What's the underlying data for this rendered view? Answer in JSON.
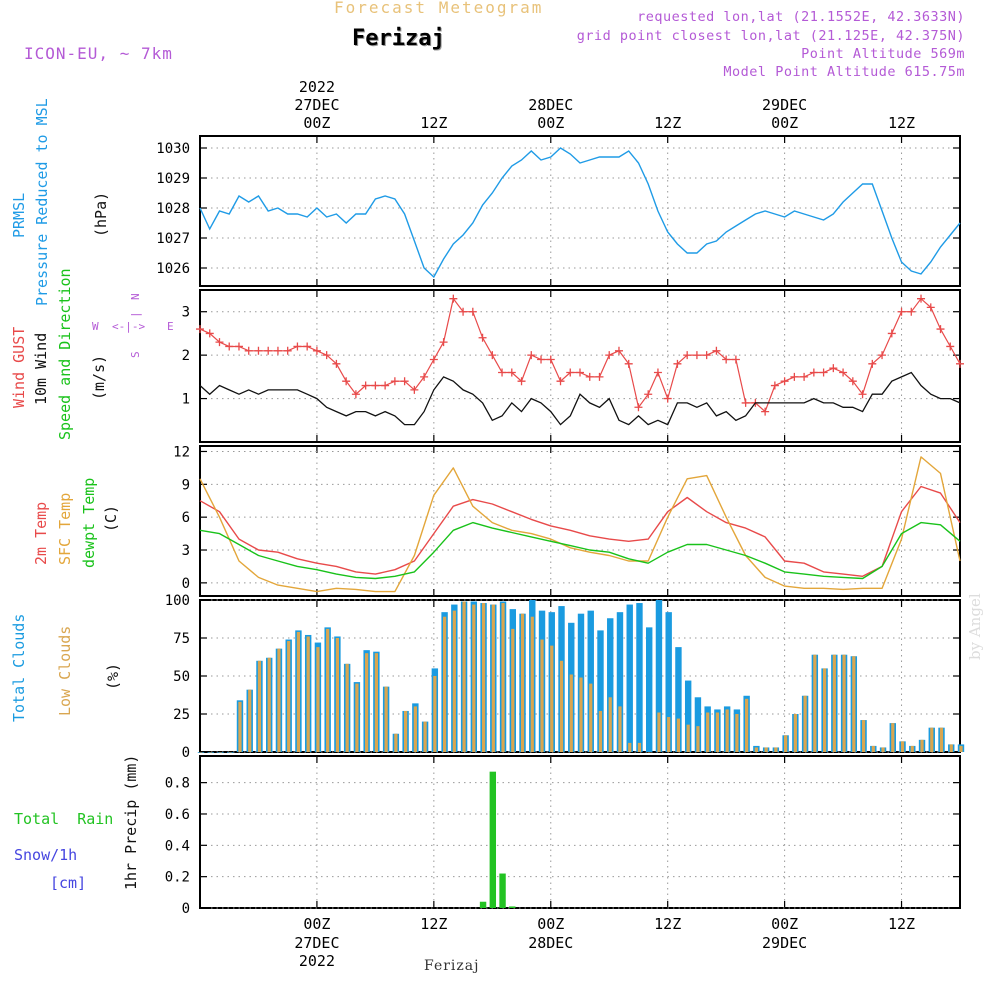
{
  "header": {
    "title": "Forecast Meteogram",
    "location": "Ferizaj",
    "model": "ICON-EU, ~ 7km",
    "requested": "requested lon,lat (21.1552E, 42.3633N)",
    "gridpoint": "grid point closest lon,lat (21.125E, 42.375N)",
    "point_altitude": "Point Altitude 569m",
    "model_altitude": "Model Point Altitude 615.75m"
  },
  "footer": {
    "location": "Ferizaj",
    "watermark": "by Angel"
  },
  "time_axis": {
    "hour_start": 0,
    "hour_end": 78,
    "ticks": [
      {
        "hour": 12,
        "line1": "00Z",
        "line2": "27DEC",
        "line3": "2022"
      },
      {
        "hour": 24,
        "line1": "12Z",
        "line2": "",
        "line3": ""
      },
      {
        "hour": 36,
        "line1": "00Z",
        "line2": "28DEC",
        "line3": ""
      },
      {
        "hour": 48,
        "line1": "12Z",
        "line2": "",
        "line3": ""
      },
      {
        "hour": 60,
        "line1": "00Z",
        "line2": "29DEC",
        "line3": ""
      },
      {
        "hour": 72,
        "line1": "12Z",
        "line2": "",
        "line3": ""
      }
    ]
  },
  "colors": {
    "pressure": "#1f9be6",
    "gust": "#e84a4a",
    "wind": "#111111",
    "t2m": "#e84a4a",
    "sfc": "#e3a63a",
    "dewpt": "#19c21a",
    "total_clouds": "#1a9be0",
    "low_clouds": "#d9a650",
    "rain": "#22c322",
    "snow": "#4545e0",
    "label_violet": "#b45ad6"
  },
  "panels": {
    "pressure": {
      "label1": "PRMSL",
      "label2": "Pressure Reduced to MSL",
      "unit": "(hPa)"
    },
    "wind": {
      "label1": "Wind GUST",
      "label2": "10m Wind",
      "label3": "Speed and Direction",
      "unit": "(m/s)",
      "compass_n": "N",
      "compass_s": "S",
      "compass_w": "W",
      "compass_e": "E",
      "compass_ns_mid": "|",
      "compass_we_mid": "<-|->"
    },
    "temp": {
      "label1": "2m Temp",
      "label2": "SFC Temp",
      "label3": "dewpt Temp",
      "unit": "(C)"
    },
    "clouds": {
      "label1": "Total Clouds",
      "label2": "Low Clouds",
      "unit": "(%)"
    },
    "precip": {
      "label1": "Total  Rain",
      "label2": "Snow/1h",
      "label3": "[cm]",
      "unit": "1hr Precip (mm)"
    }
  },
  "chart_data": [
    {
      "type": "line",
      "title": "PRMSL Pressure Reduced to MSL",
      "ylabel": "(hPa)",
      "ylim": [
        1025.4,
        1030.4
      ],
      "yticks": [
        1026,
        1027,
        1028,
        1029,
        1030
      ],
      "grid": true,
      "x_hours": [
        0,
        1,
        2,
        3,
        4,
        5,
        6,
        7,
        8,
        9,
        10,
        11,
        12,
        13,
        14,
        15,
        16,
        17,
        18,
        19,
        20,
        21,
        22,
        23,
        24,
        25,
        26,
        27,
        28,
        29,
        30,
        31,
        32,
        33,
        34,
        35,
        36,
        37,
        38,
        39,
        40,
        41,
        42,
        43,
        44,
        45,
        46,
        47,
        48,
        49,
        50,
        51,
        52,
        53,
        54,
        55,
        56,
        57,
        58,
        59,
        60,
        61,
        62,
        63,
        64,
        65,
        66,
        67,
        68,
        69,
        70,
        71,
        72,
        73,
        74,
        75,
        76,
        77,
        78
      ],
      "series": [
        {
          "name": "PRMSL",
          "values": [
            1028.0,
            1027.3,
            1027.9,
            1027.8,
            1028.4,
            1028.2,
            1028.4,
            1027.9,
            1028.0,
            1027.8,
            1027.8,
            1027.7,
            1028.0,
            1027.7,
            1027.8,
            1027.5,
            1027.8,
            1027.8,
            1028.3,
            1028.4,
            1028.3,
            1027.8,
            1026.9,
            1026.0,
            1025.7,
            1026.3,
            1026.8,
            1027.1,
            1027.5,
            1028.1,
            1028.5,
            1029.0,
            1029.4,
            1029.6,
            1029.9,
            1029.6,
            1029.7,
            1030.0,
            1029.8,
            1029.5,
            1029.6,
            1029.7,
            1029.7,
            1029.7,
            1029.9,
            1029.5,
            1028.8,
            1027.9,
            1027.2,
            1026.8,
            1026.5,
            1026.5,
            1026.8,
            1026.9,
            1027.2,
            1027.4,
            1027.6,
            1027.8,
            1027.9,
            1027.8,
            1027.7,
            1027.9,
            1027.8,
            1027.7,
            1027.6,
            1027.8,
            1028.2,
            1028.5,
            1028.8,
            1028.8,
            1027.9,
            1027.0,
            1026.2,
            1025.9,
            1025.8,
            1026.2,
            1026.7,
            1027.1,
            1027.5
          ]
        }
      ]
    },
    {
      "type": "line",
      "title": "Wind GUST / 10m Wind Speed and Direction",
      "ylabel": "(m/s)",
      "ylim": [
        0,
        3.5
      ],
      "yticks": [
        1,
        2,
        3
      ],
      "grid": true,
      "x_hours": [
        0,
        1,
        2,
        3,
        4,
        5,
        6,
        7,
        8,
        9,
        10,
        11,
        12,
        13,
        14,
        15,
        16,
        17,
        18,
        19,
        20,
        21,
        22,
        23,
        24,
        25,
        26,
        27,
        28,
        29,
        30,
        31,
        32,
        33,
        34,
        35,
        36,
        37,
        38,
        39,
        40,
        41,
        42,
        43,
        44,
        45,
        46,
        47,
        48,
        49,
        50,
        51,
        52,
        53,
        54,
        55,
        56,
        57,
        58,
        59,
        60,
        61,
        62,
        63,
        64,
        65,
        66,
        67,
        68,
        69,
        70,
        71,
        72,
        73,
        74,
        75,
        76,
        77,
        78
      ],
      "series": [
        {
          "name": "Wind GUST",
          "values": [
            2.6,
            2.5,
            2.3,
            2.2,
            2.2,
            2.1,
            2.1,
            2.1,
            2.1,
            2.1,
            2.2,
            2.2,
            2.1,
            2.0,
            1.8,
            1.4,
            1.1,
            1.3,
            1.3,
            1.3,
            1.4,
            1.4,
            1.2,
            1.5,
            1.9,
            2.3,
            3.3,
            3.0,
            3.0,
            2.4,
            2.0,
            1.6,
            1.6,
            1.4,
            2.0,
            1.9,
            1.9,
            1.4,
            1.6,
            1.6,
            1.5,
            1.5,
            2.0,
            2.1,
            1.8,
            0.8,
            1.1,
            1.6,
            1.0,
            1.8,
            2.0,
            2.0,
            2.0,
            2.1,
            1.9,
            1.9,
            0.9,
            0.9,
            0.7,
            1.3,
            1.4,
            1.5,
            1.5,
            1.6,
            1.6,
            1.7,
            1.6,
            1.4,
            1.1,
            1.8,
            2.0,
            2.5,
            3.0,
            3.0,
            3.3,
            3.1,
            2.6,
            2.2,
            1.8
          ]
        },
        {
          "name": "10m Wind",
          "values": [
            1.3,
            1.1,
            1.3,
            1.2,
            1.1,
            1.2,
            1.1,
            1.2,
            1.2,
            1.2,
            1.2,
            1.1,
            1.0,
            0.8,
            0.7,
            0.6,
            0.7,
            0.7,
            0.6,
            0.7,
            0.6,
            0.4,
            0.4,
            0.7,
            1.2,
            1.5,
            1.4,
            1.2,
            1.1,
            0.9,
            0.5,
            0.6,
            0.9,
            0.7,
            1.0,
            0.9,
            0.7,
            0.4,
            0.6,
            1.1,
            0.9,
            0.8,
            1.0,
            0.5,
            0.4,
            0.6,
            0.4,
            0.5,
            0.4,
            0.9,
            0.9,
            0.8,
            0.9,
            0.6,
            0.7,
            0.5,
            0.6,
            0.9,
            0.9,
            0.9,
            0.9,
            0.9,
            0.9,
            1.0,
            0.9,
            0.9,
            0.8,
            0.8,
            0.7,
            1.1,
            1.1,
            1.4,
            1.5,
            1.6,
            1.3,
            1.1,
            1.0,
            1.0,
            0.9
          ]
        }
      ]
    },
    {
      "type": "line",
      "title": "2m Temp / SFC Temp / dewpt Temp",
      "ylabel": "(C)",
      "ylim": [
        -1.2,
        12.5
      ],
      "yticks": [
        0,
        3,
        6,
        9,
        12
      ],
      "grid": true,
      "x_hours": [
        0,
        2,
        4,
        6,
        8,
        10,
        12,
        14,
        16,
        18,
        20,
        22,
        24,
        26,
        28,
        30,
        32,
        34,
        36,
        38,
        40,
        42,
        44,
        46,
        48,
        50,
        52,
        54,
        56,
        58,
        60,
        62,
        64,
        66,
        68,
        70,
        72,
        74,
        76,
        78
      ],
      "series": [
        {
          "name": "2m Temp",
          "values": [
            7.5,
            6.5,
            4.0,
            3.0,
            2.8,
            2.2,
            1.8,
            1.5,
            1.0,
            0.8,
            1.2,
            2.0,
            4.5,
            7.0,
            7.6,
            7.2,
            6.5,
            5.8,
            5.2,
            4.8,
            4.3,
            4.0,
            3.8,
            4.0,
            6.5,
            7.8,
            6.5,
            5.5,
            5.0,
            4.2,
            2.0,
            1.8,
            1.0,
            0.8,
            0.6,
            1.5,
            6.5,
            8.8,
            8.2,
            5.5
          ]
        },
        {
          "name": "SFC Temp",
          "values": [
            9.5,
            6.0,
            2.0,
            0.5,
            -0.2,
            -0.5,
            -0.8,
            -0.5,
            -0.6,
            -0.8,
            -0.8,
            2.5,
            8.0,
            10.5,
            7.0,
            5.5,
            4.8,
            4.5,
            4.0,
            3.2,
            2.8,
            2.5,
            2.0,
            2.0,
            6.0,
            9.5,
            9.8,
            6.0,
            2.5,
            0.5,
            -0.3,
            -0.5,
            -0.5,
            -0.6,
            -0.5,
            -0.5,
            4.0,
            11.5,
            10.0,
            2.0
          ]
        },
        {
          "name": "dewpt Temp",
          "values": [
            4.8,
            4.5,
            3.5,
            2.5,
            2.0,
            1.5,
            1.2,
            0.8,
            0.5,
            0.4,
            0.6,
            1.0,
            2.8,
            4.8,
            5.5,
            5.0,
            4.6,
            4.2,
            3.8,
            3.4,
            3.0,
            2.8,
            2.2,
            1.8,
            2.8,
            3.5,
            3.5,
            3.0,
            2.5,
            1.8,
            1.0,
            0.8,
            0.6,
            0.5,
            0.4,
            1.5,
            4.5,
            5.5,
            5.3,
            3.8
          ]
        }
      ]
    },
    {
      "type": "bar",
      "title": "Total Clouds / Low Clouds",
      "ylabel": "(%)",
      "ylim": [
        0,
        100
      ],
      "yticks": [
        0,
        25,
        50,
        75,
        100
      ],
      "grid": true,
      "x_hours": [
        0,
        1,
        2,
        3,
        4,
        5,
        6,
        7,
        8,
        9,
        10,
        11,
        12,
        13,
        14,
        15,
        16,
        17,
        18,
        19,
        20,
        21,
        22,
        23,
        24,
        25,
        26,
        27,
        28,
        29,
        30,
        31,
        32,
        33,
        34,
        35,
        36,
        37,
        38,
        39,
        40,
        41,
        42,
        43,
        44,
        45,
        46,
        47,
        48,
        49,
        50,
        51,
        52,
        53,
        54,
        55,
        56,
        57,
        58,
        59,
        60,
        61,
        62,
        63,
        64,
        65,
        66,
        67,
        68,
        69,
        70,
        71,
        72,
        73,
        74,
        75,
        76,
        77,
        78
      ],
      "series": [
        {
          "name": "Total Clouds",
          "values": [
            0,
            0,
            0,
            0,
            34,
            41,
            60,
            62,
            68,
            74,
            80,
            77,
            72,
            82,
            76,
            58,
            46,
            67,
            66,
            43,
            12,
            27,
            32,
            20,
            55,
            92,
            97,
            99,
            99,
            98,
            97,
            99,
            94,
            91,
            100,
            93,
            92,
            96,
            85,
            91,
            93,
            80,
            88,
            92,
            97,
            98,
            82,
            100,
            92,
            69,
            47,
            36,
            30,
            28,
            30,
            28,
            37,
            4,
            3,
            3,
            11,
            25,
            37,
            64,
            55,
            64,
            64,
            63,
            21,
            4,
            3,
            19,
            7,
            4,
            8,
            16,
            16,
            5,
            5
          ]
        },
        {
          "name": "Low Clouds",
          "values": [
            0,
            0,
            0,
            0,
            33,
            41,
            60,
            62,
            68,
            73,
            79,
            76,
            69,
            81,
            75,
            58,
            45,
            65,
            65,
            43,
            12,
            27,
            30,
            20,
            50,
            89,
            93,
            99,
            97,
            98,
            97,
            98,
            81,
            91,
            89,
            74,
            70,
            60,
            51,
            49,
            45,
            27,
            36,
            30,
            6,
            6,
            0,
            26,
            23,
            22,
            18,
            17,
            26,
            26,
            28,
            25,
            35,
            3,
            3,
            3,
            11,
            25,
            37,
            64,
            55,
            64,
            64,
            63,
            21,
            4,
            3,
            19,
            7,
            4,
            8,
            16,
            16,
            5,
            4
          ]
        }
      ]
    },
    {
      "type": "bar",
      "title": "1hr Precip",
      "ylabel": "1hr Precip (mm)",
      "ylim": [
        0,
        0.97
      ],
      "yticks": [
        0,
        0.2,
        0.4,
        0.6,
        0.8
      ],
      "grid": true,
      "series": [
        {
          "name": "Total Rain",
          "x_hours": [
            29,
            30,
            31,
            32
          ],
          "values": [
            0.04,
            0.87,
            0.22,
            0.01
          ]
        },
        {
          "name": "Snow/1h",
          "x_hours": [],
          "values": []
        }
      ]
    }
  ]
}
